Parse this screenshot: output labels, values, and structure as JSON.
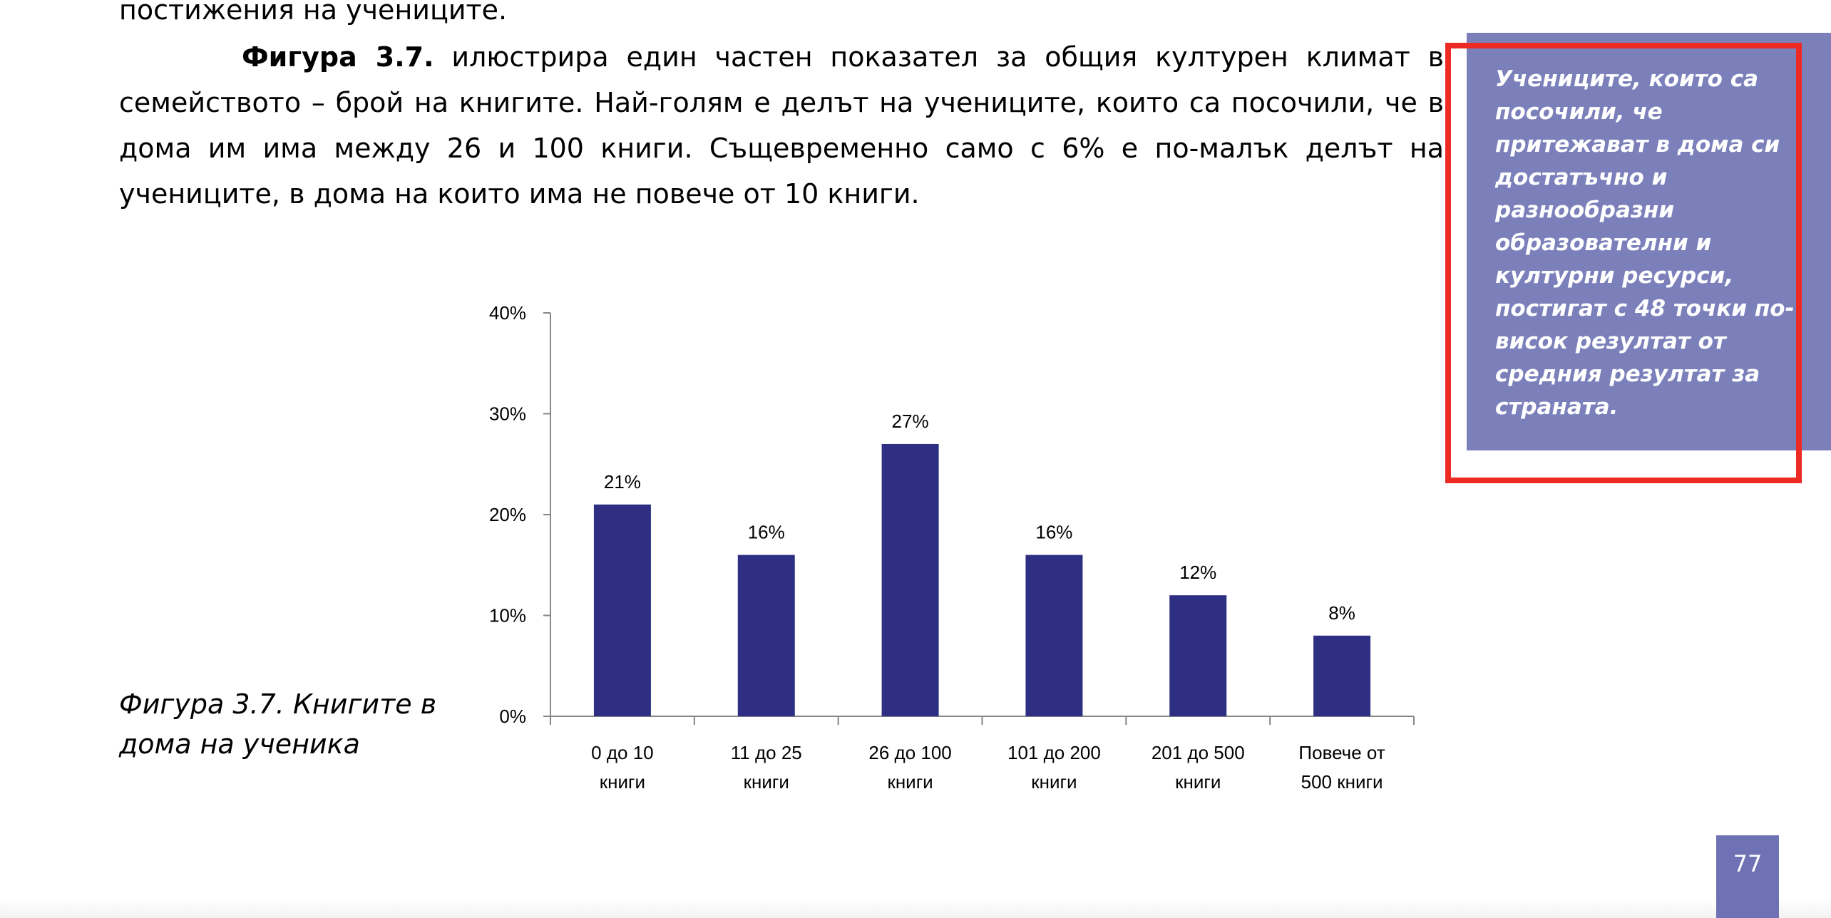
{
  "document": {
    "intro_line": "постижения на учениците.",
    "paragraph_bold": "Фигура 3.7.",
    "paragraph_rest": " илюстрира един частен показател за общия културен климат в семейството – брой на книгите. Най-голям е делът на учениците, които са посочили, че в дома им има между 26 и 100 книги. Същевременно само с 6% е по-малък делът на учениците, в дома на които има не повече от 10 книги.",
    "caption": "Фигура 3.7. Книгите в дома на ученика",
    "page_number": "77"
  },
  "sidebar": {
    "text": "Учениците, които са посочили, че притежават в дома си достатъчно и разнообразни образователни и културни ресурси, постигат с 48 точки по-висок резултат от средния резултат за страната."
  },
  "colors": {
    "bar": "#2e2f82",
    "sidebar_bg": "#7b80bb",
    "highlight_frame": "#ee2a24",
    "page_badge": "#6e72b4"
  },
  "chart_data": {
    "type": "bar",
    "categories": [
      [
        "0 до 10",
        "книги"
      ],
      [
        "11 до 25",
        "книги"
      ],
      [
        "26 до 100",
        "книги"
      ],
      [
        "101 до 200",
        "книги"
      ],
      [
        "201 до 500",
        "книги"
      ],
      [
        "Повече от",
        "500 книги"
      ]
    ],
    "values": [
      21,
      16,
      27,
      16,
      12,
      8
    ],
    "value_labels": [
      "21%",
      "16%",
      "27%",
      "16%",
      "12%",
      "8%"
    ],
    "y_ticks": [
      "0%",
      "10%",
      "20%",
      "30%",
      "40%"
    ],
    "ylim": [
      0,
      40
    ],
    "grid": false,
    "legend": "none"
  }
}
